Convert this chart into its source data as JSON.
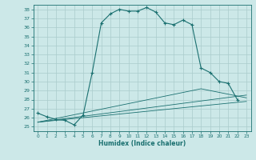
{
  "xlabel": "Humidex (Indice chaleur)",
  "ylabel": "",
  "bg_color": "#cce8e8",
  "grid_color": "#aacccc",
  "line_color": "#1a7070",
  "marker_color": "#1a7070",
  "xlim": [
    -0.5,
    23.5
  ],
  "ylim": [
    24.5,
    38.5
  ],
  "yticks": [
    25,
    26,
    27,
    28,
    29,
    30,
    31,
    32,
    33,
    34,
    35,
    36,
    37,
    38
  ],
  "xticks": [
    0,
    1,
    2,
    3,
    4,
    5,
    6,
    7,
    8,
    9,
    10,
    11,
    12,
    13,
    14,
    15,
    16,
    17,
    18,
    19,
    20,
    21,
    22,
    23
  ],
  "series": [
    {
      "x": [
        0,
        1,
        2,
        3,
        4,
        5,
        6,
        7,
        8,
        9,
        10,
        11,
        12,
        13,
        14,
        15,
        16,
        17,
        18,
        19,
        20,
        21,
        22
      ],
      "y": [
        26.5,
        26.1,
        25.8,
        25.7,
        25.2,
        26.3,
        31.0,
        36.5,
        37.5,
        38.0,
        37.8,
        37.8,
        38.2,
        37.7,
        36.5,
        36.3,
        36.8,
        36.3,
        31.5,
        31.0,
        30.0,
        29.8,
        28.0
      ],
      "marker": true
    },
    {
      "x": [
        0,
        23
      ],
      "y": [
        25.5,
        27.8
      ],
      "marker": false
    },
    {
      "x": [
        0,
        23
      ],
      "y": [
        25.5,
        28.5
      ],
      "marker": false
    },
    {
      "x": [
        0,
        18,
        23
      ],
      "y": [
        25.5,
        29.2,
        28.2
      ],
      "marker": false
    }
  ]
}
